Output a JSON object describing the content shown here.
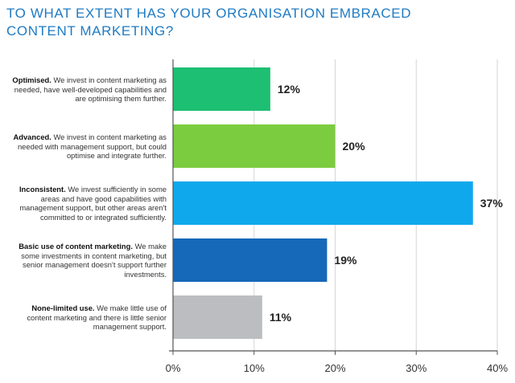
{
  "title": "TO WHAT EXTENT HAS YOUR ORGANISATION EMBRACED CONTENT MARKETING?",
  "chart_data": {
    "type": "bar",
    "orientation": "horizontal",
    "title": "TO WHAT EXTENT HAS YOUR ORGANISATION EMBRACED CONTENT MARKETING?",
    "xlabel": "",
    "ylabel": "",
    "xlim": [
      0,
      40
    ],
    "x_ticks": [
      0,
      10,
      20,
      30,
      40
    ],
    "x_tick_labels": [
      "0%",
      "10%",
      "20%",
      "30%",
      "40%"
    ],
    "grid": true,
    "categories": [
      {
        "bold": "Optimised.",
        "text": " We invest in content marketing as needed, have well-developed capabilities and are optimising them further."
      },
      {
        "bold": "Advanced.",
        "text": " We invest in content marketing as needed with management support, but could optimise and integrate further."
      },
      {
        "bold": "Inconsistent.",
        "text": " We invest sufficiently in some areas and have good capabilities with management support, but other areas aren't committed to or integrated sufficiently."
      },
      {
        "bold": "Basic use of content marketing.",
        "text": " We make some investments in content marketing, but senior management doesn't support further investments."
      },
      {
        "bold": "None-limited use.",
        "text": " We make little use of content marketing and there is little senior management support."
      }
    ],
    "values": [
      12,
      20,
      37,
      19,
      11
    ],
    "value_labels": [
      "12%",
      "20%",
      "37%",
      "19%",
      "11%"
    ],
    "colors": [
      "#1dbf73",
      "#7ccc3f",
      "#0fa8ec",
      "#1668b8",
      "#bbbdc0"
    ]
  },
  "colors": {
    "title": "#1f7bc4",
    "axis": "#555555",
    "grid": "#d6d6d6"
  }
}
